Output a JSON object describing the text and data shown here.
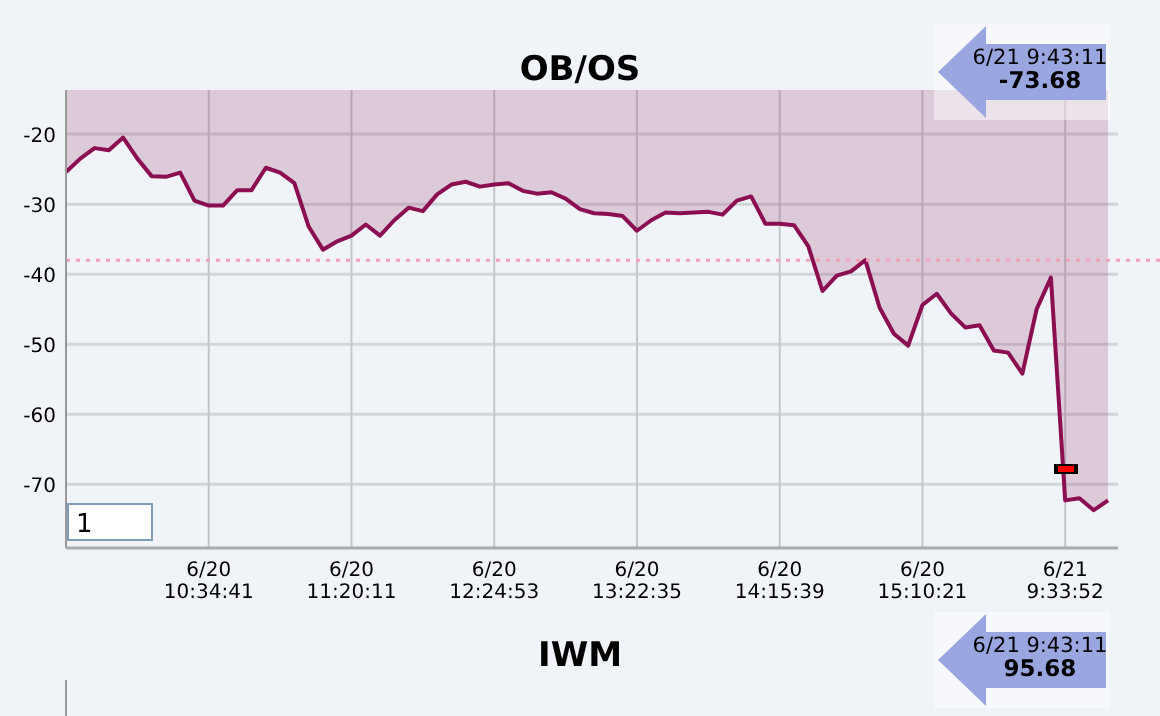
{
  "chart_data": [
    {
      "type": "area",
      "title": "OB/OS",
      "categories": [
        null,
        null,
        null,
        null,
        null,
        null,
        null,
        null,
        null,
        null,
        "6/20\n10:34:41",
        null,
        null,
        null,
        null,
        null,
        null,
        null,
        null,
        null,
        "6/20\n11:20:11",
        null,
        null,
        null,
        null,
        null,
        null,
        null,
        null,
        null,
        "6/20\n12:24:53",
        null,
        null,
        null,
        null,
        null,
        null,
        null,
        null,
        null,
        "6/20\n13:22:35",
        null,
        null,
        null,
        null,
        null,
        null,
        null,
        null,
        null,
        "6/20\n14:15:39",
        null,
        null,
        null,
        null,
        null,
        null,
        null,
        null,
        null,
        "6/20\n15:10:21",
        null,
        null,
        null,
        null,
        null,
        null,
        null,
        null,
        null,
        "6/21\n9:33:52",
        null,
        null,
        null
      ],
      "series": [
        {
          "color": "#8b0e50",
          "values": [
            -25.4,
            -23.5,
            -22,
            -22.3,
            -20.5,
            -23.5,
            -26,
            -26.1,
            -25.5,
            -29.5,
            -30.2,
            -30.2,
            -28,
            -28,
            -24.8,
            -25.5,
            -27,
            -33.2,
            -36.5,
            -35.3,
            -34.5,
            -32.9,
            -34.5,
            -32.3,
            -30.5,
            -31,
            -28.6,
            -27.2,
            -26.8,
            -27.5,
            -27.2,
            -27,
            -28.1,
            -28.5,
            -28.3,
            -29.2,
            -30.7,
            -31.3,
            -31.4,
            -31.7,
            -33.8,
            -32.3,
            -31.2,
            -31.3,
            -31.2,
            -31.1,
            -31.5,
            -29.5,
            -28.9,
            -32.8,
            -32.8,
            -33,
            -36,
            -42.4,
            -40.2,
            -39.6,
            -38,
            -44.8,
            -48.5,
            -50.2,
            -44.4,
            -42.8,
            -45.6,
            -47.6,
            -47.3,
            -50.9,
            -51.2,
            -54.2,
            -45,
            -40.5,
            -72.3,
            -72,
            -73.7,
            -72.3
          ]
        }
      ],
      "ylim": [
        -79.1,
        -13.7
      ],
      "yticks": [
        -20,
        -30,
        -40,
        -50,
        -60,
        -70
      ],
      "grid": true,
      "ref_lines": [
        {
          "axis": "y",
          "value": -38,
          "color": "#f4a0b8",
          "line_style": "dotted"
        }
      ],
      "annotations": [
        "6/21 9:43:11",
        "-73.68",
        "1"
      ]
    },
    {
      "type": "other",
      "title": "IWM",
      "annotations": [
        "6/21 9:43:11",
        "95.68"
      ]
    }
  ]
}
